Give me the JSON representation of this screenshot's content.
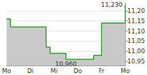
{
  "chart_data": {
    "type": "line",
    "categories": [
      "Mo",
      null,
      null,
      null,
      null,
      null,
      "Di",
      null,
      null,
      null,
      null,
      null,
      "Mi",
      null,
      null,
      null,
      null,
      null,
      "Do",
      null,
      null,
      null,
      null,
      null,
      "Fr",
      null,
      null,
      null,
      null,
      null,
      "Mo"
    ],
    "values": [
      11.16,
      11.12,
      11.12,
      11.12,
      11.12,
      11.12,
      11.12,
      11.12,
      11.12,
      11.12,
      11.02,
      10.99,
      10.99,
      10.99,
      10.99,
      10.96,
      10.96,
      10.96,
      10.96,
      10.96,
      10.96,
      10.96,
      10.98,
      10.98,
      11.14,
      11.14,
      11.14,
      11.14,
      11.14,
      11.14,
      11.23
    ],
    "color": "#2f9e2f",
    "ylim": [
      10.93,
      11.24
    ],
    "yticks": [
      {
        "value": 10.95,
        "label": "10,95"
      },
      {
        "value": 11.0,
        "label": "11,00"
      },
      {
        "value": 11.05,
        "label": "11,05"
      },
      {
        "value": 11.1,
        "label": "11,10"
      },
      {
        "value": 11.15,
        "label": "11,15"
      },
      {
        "value": 11.2,
        "label": "11,20"
      }
    ],
    "annotations": [
      {
        "label": "11,230",
        "x": 30,
        "value": 11.23
      },
      {
        "label": "10,960",
        "x": 15,
        "value": 10.96
      }
    ],
    "grid": true
  }
}
